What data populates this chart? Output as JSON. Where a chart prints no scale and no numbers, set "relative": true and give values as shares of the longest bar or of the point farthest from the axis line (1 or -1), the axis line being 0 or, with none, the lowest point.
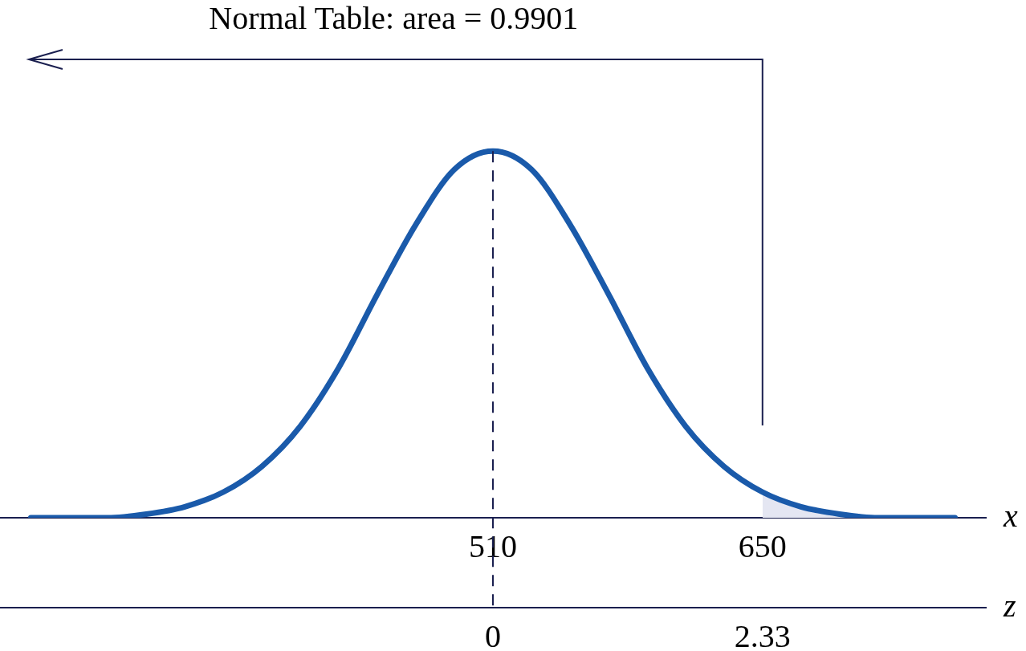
{
  "chart_data": {
    "type": "line",
    "relative": true,
    "xlabel": "x",
    "x2label": "z",
    "xlim": [
      254,
      766
    ],
    "xticks": [
      510,
      650
    ],
    "x2lim": [
      -4.26,
      4.26
    ],
    "x2ticks": [
      0,
      2.33
    ],
    "grid": false,
    "legend": false,
    "marker": "none",
    "annotations": [
      "Normal Table: area = 0.9901"
    ],
    "ref_lines": [
      {
        "axis": "x",
        "value": 510,
        "line_style": "dashed",
        "color": "#1a1f4f"
      },
      {
        "axis": "x",
        "value": 650,
        "line_style": "solid",
        "color": "#1a1f4f"
      }
    ],
    "series": [
      {
        "color": "#1a5aaa",
        "x": [
          270,
          290,
          310,
          330,
          350,
          370,
          390,
          410,
          430,
          450,
          470,
          490,
          510,
          530,
          550,
          570,
          590,
          610,
          630,
          650,
          670,
          690,
          710,
          730,
          750
        ],
        "values": [
          0.0,
          0.0,
          0.0,
          0.01,
          0.03,
          0.07,
          0.14,
          0.25,
          0.41,
          0.61,
          0.8,
          0.95,
          1,
          0.95,
          0.8,
          0.61,
          0.41,
          0.25,
          0.14,
          0.07,
          0.03,
          0.01,
          0.0,
          0.0,
          0.0
        ]
      },
      {
        "type": "area",
        "color": "#e4e6f2",
        "x": [
          650,
          670,
          690,
          710,
          730,
          750
        ],
        "values": [
          0.07,
          0.03,
          0.01,
          0.0,
          0.0,
          0.0
        ]
      }
    ]
  }
}
